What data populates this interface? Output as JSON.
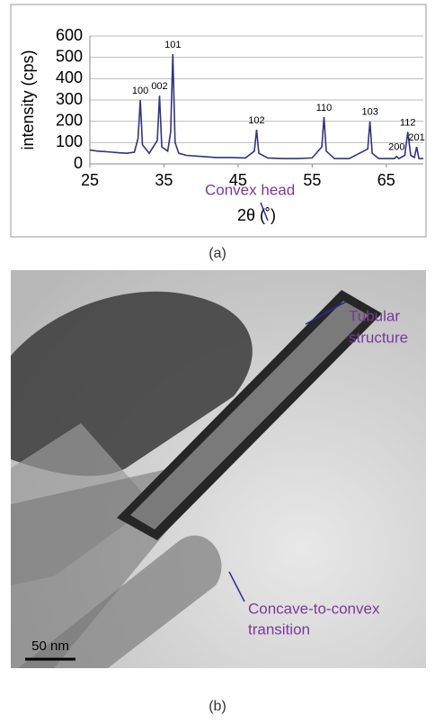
{
  "chart_data": {
    "type": "line",
    "xlabel": "2θ (˚)",
    "ylabel": "intensity (cps)",
    "x": [
      25,
      26,
      27,
      28,
      29,
      30,
      31,
      31.5,
      31.8,
      32.1,
      33,
      34.1,
      34.4,
      34.7,
      35.5,
      35.9,
      36.2,
      36.5,
      37,
      38,
      40,
      42,
      44,
      46,
      47.2,
      47.5,
      47.8,
      49,
      51,
      53,
      55,
      56.3,
      56.6,
      56.9,
      58,
      60,
      62.5,
      62.8,
      63.1,
      64,
      65,
      66.1,
      66.4,
      66.7,
      67.5,
      67.9,
      68.3,
      68.8,
      69.1,
      69.4,
      70
    ],
    "series": [
      {
        "color": "#33337f",
        "values": [
          65,
          60,
          58,
          55,
          52,
          50,
          55,
          120,
          300,
          90,
          50,
          110,
          320,
          80,
          60,
          150,
          515,
          100,
          50,
          40,
          35,
          30,
          30,
          28,
          60,
          160,
          50,
          28,
          25,
          25,
          28,
          80,
          220,
          60,
          25,
          25,
          70,
          200,
          50,
          25,
          25,
          25,
          35,
          25,
          40,
          150,
          40,
          30,
          80,
          25,
          25
        ]
      }
    ],
    "peaks": [
      {
        "label": "100",
        "x": 31.8,
        "y": 300
      },
      {
        "label": "002",
        "x": 34.4,
        "y": 320
      },
      {
        "label": "101",
        "x": 36.2,
        "y": 515
      },
      {
        "label": "102",
        "x": 47.5,
        "y": 160
      },
      {
        "label": "110",
        "x": 56.6,
        "y": 220
      },
      {
        "label": "103",
        "x": 62.8,
        "y": 200
      },
      {
        "label": "200",
        "x": 66.4,
        "y": 35
      },
      {
        "label": "112",
        "x": 67.9,
        "y": 150
      },
      {
        "label": "201",
        "x": 69.1,
        "y": 80
      }
    ],
    "xlim": [
      25,
      70
    ],
    "xticks": [
      25,
      35,
      45,
      55,
      65
    ],
    "ylim": [
      0,
      600
    ],
    "yticks": [
      0,
      100,
      200,
      300,
      400,
      500,
      600
    ],
    "grid": true
  },
  "panel_labels": [
    "(a)",
    "(b)"
  ],
  "image": {
    "annotations": [
      [
        "Convex head"
      ],
      [
        "Tubular",
        "structure"
      ],
      [
        "Concave-to-convex",
        "transition"
      ]
    ],
    "scale_bar": "50 nm"
  }
}
